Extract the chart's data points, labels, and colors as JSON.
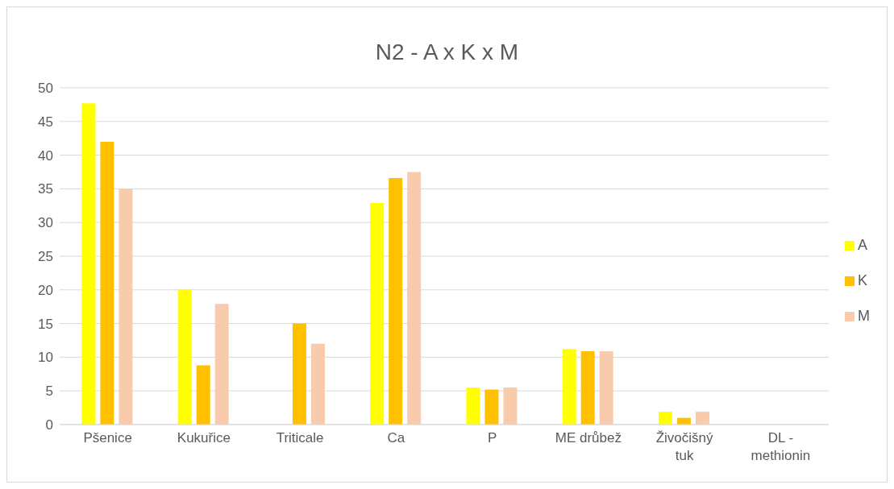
{
  "chart_data": {
    "type": "bar",
    "title": "N2 - A x K x M",
    "categories": [
      "Pšenice",
      "Kukuřice",
      "Triticale",
      "Ca",
      "P",
      "ME drůbež",
      "Živočišný tuk",
      "DL - methionin"
    ],
    "series": [
      {
        "name": "A",
        "color": "#ffff00",
        "values": [
          47.7,
          20.1,
          0,
          32.9,
          5.5,
          11.2,
          1.9,
          0
        ]
      },
      {
        "name": "K",
        "color": "#ffc000",
        "values": [
          42.0,
          8.8,
          15.0,
          36.6,
          5.2,
          10.9,
          1.0,
          0
        ]
      },
      {
        "name": "M",
        "color": "#f8cbad",
        "values": [
          35.0,
          17.9,
          12.0,
          37.5,
          5.5,
          10.9,
          1.9,
          0
        ]
      }
    ],
    "ylim": [
      0,
      50
    ],
    "yticks": [
      0,
      5,
      10,
      15,
      20,
      25,
      30,
      35,
      40,
      45,
      50
    ],
    "grid": "y",
    "legend": "right"
  }
}
